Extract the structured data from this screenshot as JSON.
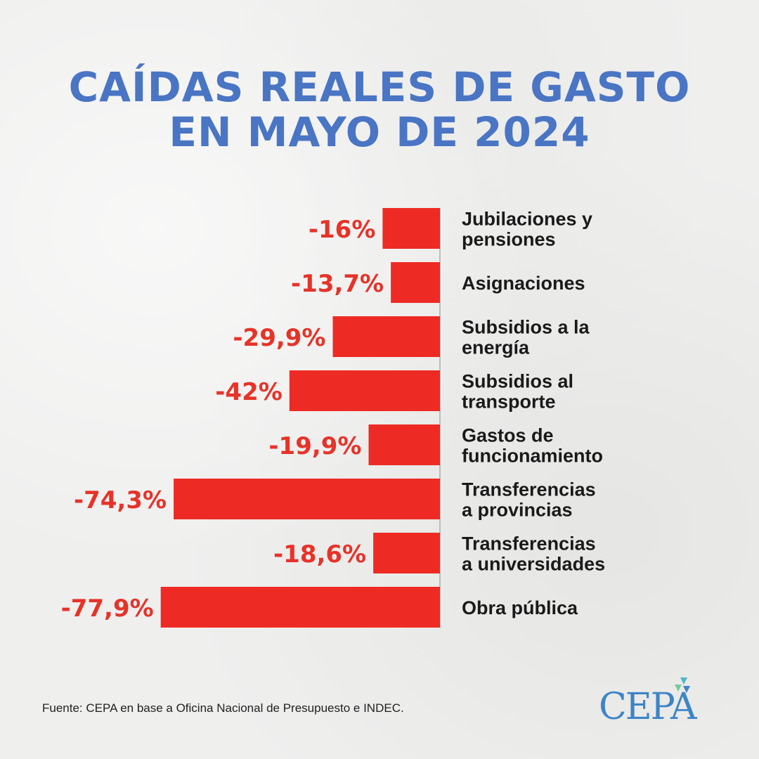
{
  "title": {
    "line1": "CAÍDAS REALES DE GASTO",
    "line2": "EN MAYO DE 2024"
  },
  "chart_data": {
    "type": "bar",
    "orientation": "horizontal",
    "categories": [
      [
        "Jubilaciones y",
        "pensiones"
      ],
      [
        "Asignaciones"
      ],
      [
        "Subsidios a la",
        "energía"
      ],
      [
        "Subsidios al",
        "transporte"
      ],
      [
        "Gastos de",
        "funcionamiento"
      ],
      [
        "Transferencias",
        "a provincias"
      ],
      [
        "Transferencias",
        "a universidades"
      ],
      [
        "Obra pública"
      ]
    ],
    "values": [
      -16,
      -13.7,
      -29.9,
      -42,
      -19.9,
      -74.3,
      -18.6,
      -77.9
    ],
    "value_labels": [
      "-16%",
      "-13,7%",
      "-29,9%",
      "-42%",
      "-19,9%",
      "-74,3%",
      "-18,6%",
      "-77,9%"
    ],
    "xlim": [
      -80,
      0
    ],
    "bar_color": "#ee2a24",
    "label_color": "#e63329"
  },
  "footer": {
    "source": "Fuente: CEPA en base a Oficina Nacional de Presupuesto e INDEC."
  },
  "logo": {
    "text": "CEPA"
  },
  "colors": {
    "title": "#4a75c4",
    "category_text": "#1a1a1a",
    "axis_line": "#bdbdbd"
  }
}
